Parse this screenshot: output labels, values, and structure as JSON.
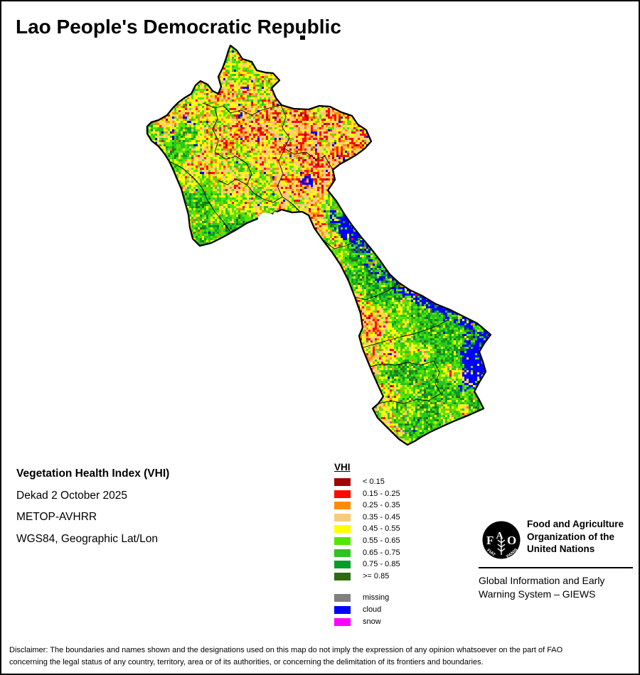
{
  "page": {
    "title": "Lao People's Democratic Republic"
  },
  "info": {
    "product": "Vegetation Health Index (VHI)",
    "dekad": "Dekad 2 October 2025",
    "sensor": "METOP-AVHRR",
    "projection": "WGS84, Geographic Lat/Lon"
  },
  "legend": {
    "title": "VHI",
    "classes": [
      {
        "label": "< 0.15",
        "color": "#A00505"
      },
      {
        "label": "0.15 - 0.25",
        "color": "#FF0A00"
      },
      {
        "label": "0.25 - 0.35",
        "color": "#FF8C00"
      },
      {
        "label": "0.35 - 0.45",
        "color": "#FBC97E"
      },
      {
        "label": "0.45 - 0.55",
        "color": "#FFFF00"
      },
      {
        "label": "0.55 - 0.65",
        "color": "#55E600"
      },
      {
        "label": "0.65 - 0.75",
        "color": "#2EC41F"
      },
      {
        "label": "0.75 - 0.85",
        "color": "#079C28"
      },
      {
        "label": ">= 0.85",
        "color": "#2E6B10"
      }
    ],
    "flags": [
      {
        "label": "missing",
        "color": "#808080"
      },
      {
        "label": "cloud",
        "color": "#0000FF"
      },
      {
        "label": "snow",
        "color": "#FF00FF"
      }
    ]
  },
  "branding": {
    "fao_letters": "FAO",
    "fao_motto_left": "FIAT",
    "fao_motto_right": "PANIS",
    "fao_name_line1": "Food and Agriculture",
    "fao_name_line2": "Organization of the",
    "fao_name_line3": "United Nations",
    "giews_line1": "Global Information and Early",
    "giews_line2": "Warning System – GIEWS"
  },
  "disclaimer": {
    "line1": "Disclaimer: The boundaries and names shown and the designations used on this map do not imply the expression of any opinion whatsoever on the part of FAO",
    "line2": "concerning the legal status of any country, territory, area or of its authorities, or concerning the delimitation of its frontiers and boundaries."
  }
}
